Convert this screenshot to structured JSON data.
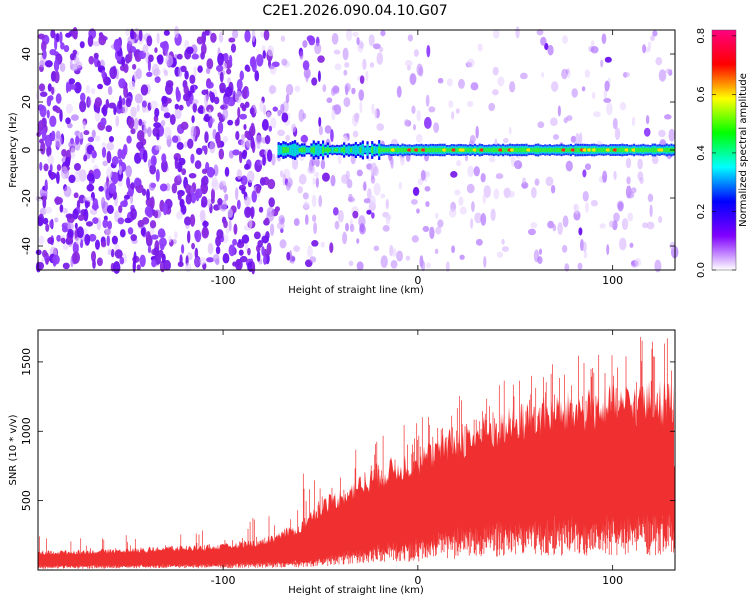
{
  "figure_title": "C2E1.2026.090.04.10.G07",
  "chart_data": [
    {
      "type": "heatmap",
      "title": "",
      "xlabel": "Height of straight line (km)",
      "ylabel": "Frequency (Hz)",
      "xlim": [
        -195,
        132
      ],
      "ylim": [
        -50,
        50
      ],
      "x_ticks": [
        -100,
        0,
        100
      ],
      "y_ticks": [
        -40,
        -20,
        0,
        20,
        40
      ],
      "colorbar": {
        "label": "Normalized spectral amplitude",
        "range": [
          0,
          0.82
        ],
        "ticks": [
          0.0,
          0.2,
          0.4,
          0.6,
          0.8
        ],
        "colors": [
          "#ffffff",
          "#8000ff",
          "#0000ff",
          "#00ffff",
          "#00ff00",
          "#ffff00",
          "#ff0000",
          "#ff0080"
        ]
      },
      "features": {
        "noise_region_x": [
          -195,
          -75
        ],
        "signal_line_frequency_hz": 0,
        "signal_start_x": -72,
        "signal_end_x": 132
      }
    },
    {
      "type": "area",
      "title": "",
      "xlabel": "Height of straight line (km)",
      "ylabel": "SNR (10 * v/v)",
      "xlim": [
        -195,
        132
      ],
      "ylim": [
        0,
        1730
      ],
      "x_ticks": [
        -100,
        0,
        100
      ],
      "y_ticks": [
        500,
        1000,
        1500
      ],
      "series_color": "#f03030",
      "envelope": {
        "x": [
          -195,
          -150,
          -100,
          -80,
          -60,
          -50,
          -40,
          -20,
          0,
          20,
          40,
          60,
          80,
          100,
          120,
          132
        ],
        "low": [
          30,
          35,
          40,
          50,
          60,
          80,
          110,
          160,
          200,
          260,
          300,
          330,
          340,
          350,
          340,
          340
        ],
        "high": [
          140,
          160,
          190,
          230,
          350,
          520,
          600,
          780,
          900,
          1050,
          1150,
          1250,
          1300,
          1350,
          1380,
          1380
        ],
        "peak": [
          260,
          260,
          300,
          400,
          700,
          760,
          830,
          1000,
          1090,
          1250,
          1400,
          1450,
          1560,
          1600,
          1730,
          1650
        ]
      }
    }
  ]
}
